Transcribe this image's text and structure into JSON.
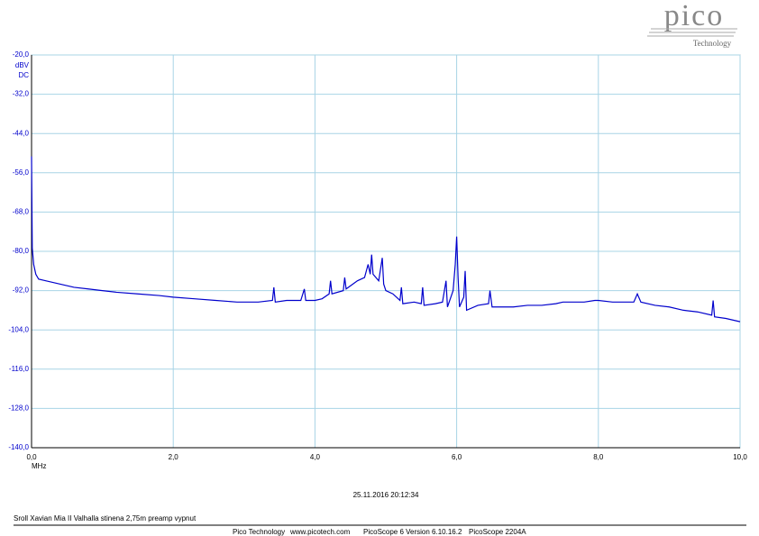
{
  "chart_data": {
    "type": "line",
    "y_unit": "dBV",
    "y_coupling": "DC",
    "x_unit": "MHz",
    "color": "#0000cc",
    "grid": true,
    "xlim": [
      0,
      10
    ],
    "ylim": [
      -140,
      -20
    ],
    "xticks": [
      {
        "value": 0,
        "label": "0,0"
      },
      {
        "value": 2,
        "label": "2,0"
      },
      {
        "value": 4,
        "label": "4,0"
      },
      {
        "value": 6,
        "label": "6,0"
      },
      {
        "value": 8,
        "label": "8,0"
      },
      {
        "value": 10,
        "label": "10,0"
      }
    ],
    "yticks": [
      {
        "value": -20,
        "label": "-20,0"
      },
      {
        "value": -32,
        "label": "-32,0"
      },
      {
        "value": -44,
        "label": "-44,0"
      },
      {
        "value": -56,
        "label": "-56,0"
      },
      {
        "value": -68,
        "label": "-68,0"
      },
      {
        "value": -80,
        "label": "-80,0"
      },
      {
        "value": -92,
        "label": "-92,0"
      },
      {
        "value": -104,
        "label": "-104,0"
      },
      {
        "value": -116,
        "label": "-116,0"
      },
      {
        "value": -128,
        "label": "-128,0"
      },
      {
        "value": -140,
        "label": "-140,0"
      }
    ],
    "x": [
      0.0,
      0.01,
      0.03,
      0.06,
      0.1,
      0.2,
      0.4,
      0.6,
      0.8,
      1.0,
      1.2,
      1.5,
      1.8,
      2.0,
      2.3,
      2.6,
      2.9,
      3.2,
      3.4,
      3.42,
      3.44,
      3.6,
      3.8,
      3.85,
      3.87,
      4.0,
      4.1,
      4.2,
      4.22,
      4.24,
      4.4,
      4.42,
      4.44,
      4.6,
      4.7,
      4.75,
      4.78,
      4.8,
      4.82,
      4.9,
      4.95,
      4.97,
      5.0,
      5.1,
      5.2,
      5.22,
      5.24,
      5.4,
      5.5,
      5.52,
      5.54,
      5.7,
      5.8,
      5.85,
      5.87,
      5.95,
      5.98,
      6.0,
      6.02,
      6.04,
      6.1,
      6.12,
      6.14,
      6.3,
      6.45,
      6.47,
      6.5,
      6.8,
      7.0,
      7.1,
      7.2,
      7.4,
      7.5,
      7.6,
      7.8,
      7.95,
      8.0,
      8.2,
      8.5,
      8.55,
      8.6,
      8.8,
      9.0,
      9.2,
      9.4,
      9.6,
      9.62,
      9.64,
      9.8,
      10.0
    ],
    "values": [
      -51,
      -79,
      -84,
      -87,
      -88.5,
      -89,
      -90,
      -91,
      -91.5,
      -92,
      -92.5,
      -93,
      -93.5,
      -94,
      -94.5,
      -95,
      -95.5,
      -95.5,
      -95,
      -91,
      -95.5,
      -95,
      -95,
      -91.5,
      -95,
      -95,
      -94.5,
      -93,
      -89,
      -93,
      -92,
      -88,
      -91.5,
      -89,
      -88,
      -84,
      -87,
      -81,
      -87,
      -89,
      -82,
      -90,
      -92,
      -93,
      -95,
      -91,
      -96,
      -95.5,
      -96,
      -91,
      -96.5,
      -96,
      -95.5,
      -89,
      -97,
      -92,
      -84,
      -75.5,
      -88,
      -97,
      -94,
      -86,
      -98,
      -96.5,
      -96,
      -92,
      -97,
      -97,
      -96.5,
      -96.5,
      -96.5,
      -96,
      -95.5,
      -95.5,
      -95.5,
      -95,
      -95,
      -95.5,
      -95.5,
      -93,
      -95.5,
      -96.5,
      -97,
      -98,
      -98.5,
      -99.5,
      -95,
      -100,
      -100.5,
      -101.5
    ]
  },
  "logo": {
    "name": "pico",
    "tagline": "Technology"
  },
  "timestamp": "25.11.2016 20:12:34",
  "caption": "Sroll Xavian Mia II Valhalla stinena 2,75m preamp vypnut",
  "footer": [
    "Pico Technology",
    "www.picotech.com",
    "PicoScope 6 Version 6.10.16.2",
    "PicoScope 2204A"
  ]
}
